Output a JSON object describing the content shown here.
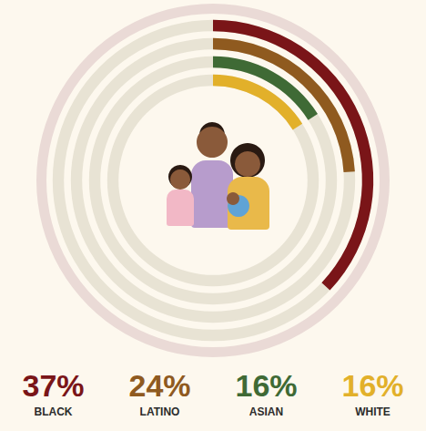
{
  "chart_data": {
    "type": "radial_bar",
    "categories": [
      "BLACK",
      "LATINO",
      "ASIAN",
      "WHITE"
    ],
    "values": [
      37,
      24,
      16,
      16
    ],
    "value_labels": [
      "37%",
      "24%",
      "16%",
      "16%"
    ],
    "colors": [
      "#7a1518",
      "#8f5a1f",
      "#3f6a35",
      "#e2b02a"
    ],
    "ylim": [
      0,
      100
    ],
    "tick_labels": false,
    "data_labels": true
  }
}
